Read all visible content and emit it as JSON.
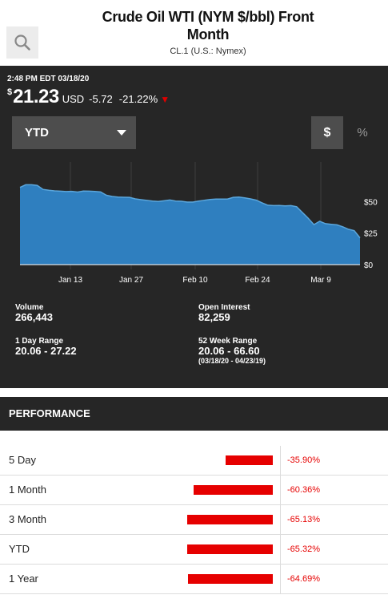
{
  "header": {
    "title": "Crude Oil WTI (NYM $/bbl) Front Month",
    "subtitle": "CL.1  (U.S.: Nymex)",
    "search_icon": "search-icon"
  },
  "quote": {
    "timestamp": "2:48 PM EDT 03/18/20",
    "currency_symbol": "$",
    "price": "21.23",
    "unit": "USD",
    "change": "-5.72",
    "change_pct": "-21.22%",
    "direction_icon": "down-triangle-icon",
    "down_color": "#e00000"
  },
  "controls": {
    "range_selected": "YTD",
    "dollar_toggle": "$",
    "percent_toggle": "%"
  },
  "chart_data": {
    "type": "area",
    "x_tick_labels": [
      "Jan 13",
      "Jan 27",
      "Feb 10",
      "Feb 24",
      "Mar 9"
    ],
    "y_tick_labels": [
      "$50",
      "$25",
      "$0"
    ],
    "ylim": [
      0,
      75
    ],
    "color": "#2f7fbf",
    "values": [
      61.2,
      63.3,
      63.3,
      62.8,
      59.6,
      59.0,
      58.5,
      58.2,
      57.9,
      58.1,
      57.5,
      58.3,
      58.2,
      58.0,
      57.6,
      55.0,
      54.0,
      53.5,
      53.4,
      53.3,
      52.1,
      51.5,
      50.9,
      50.4,
      50.0,
      50.6,
      51.2,
      50.4,
      50.2,
      49.6,
      49.6,
      50.4,
      51.0,
      51.7,
      52.0,
      51.9,
      52.0,
      53.3,
      53.5,
      52.9,
      52.1,
      51.1,
      49.0,
      47.1,
      46.8,
      46.9,
      46.5,
      46.8,
      45.9,
      41.3,
      36.8,
      31.7,
      34.4,
      32.5,
      32.0,
      31.5,
      30.0,
      28.0,
      26.9,
      21.2
    ]
  },
  "stats": {
    "volume_label": "Volume",
    "volume_value": "266,443",
    "open_interest_label": "Open Interest",
    "open_interest_value": "82,259",
    "day_range_label": "1 Day Range",
    "day_range_value": "20.06 - 27.22",
    "week52_label": "52 Week Range",
    "week52_value": "20.06 - 66.60",
    "week52_dates": "(03/18/20 - 04/23/19)"
  },
  "performance": {
    "title": "PERFORMANCE",
    "bar_color": "#e60000",
    "rows": [
      {
        "label": "5 Day",
        "value": "-35.90%",
        "pct": 35.9
      },
      {
        "label": "1 Month",
        "value": "-60.36%",
        "pct": 60.36
      },
      {
        "label": "3 Month",
        "value": "-65.13%",
        "pct": 65.13
      },
      {
        "label": "YTD",
        "value": "-65.32%",
        "pct": 65.32
      },
      {
        "label": "1 Year",
        "value": "-64.69%",
        "pct": 64.69
      }
    ]
  }
}
